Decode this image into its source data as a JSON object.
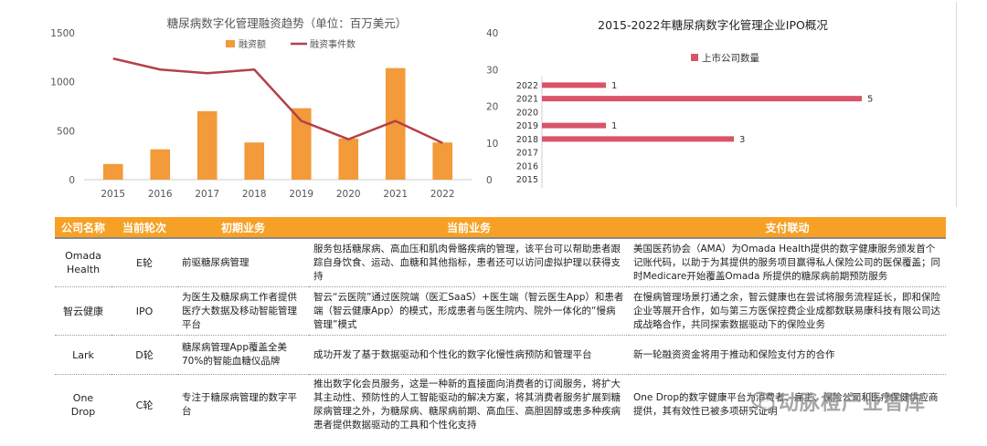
{
  "left_chart": {
    "title": "糖尿病数字化管理融资趋势（单位：百万美元）",
    "legend_bar": "融资额",
    "legend_line": "融资事件数"
  },
  "right_chart": {
    "title": "2015-2022年糖尿病数字化管理企业IPO概况",
    "legend": "上市公司数量"
  },
  "chart_data": [
    {
      "type": "bar",
      "title": "糖尿病数字化管理融资趋势（单位：百万美元）",
      "categories": [
        "2015",
        "2016",
        "2017",
        "2018",
        "2019",
        "2020",
        "2021",
        "2022"
      ],
      "series": [
        {
          "name": "融资额",
          "type": "bar",
          "axis": "left",
          "values": [
            160,
            310,
            700,
            380,
            730,
            420,
            1140,
            380
          ]
        },
        {
          "name": "融资事件数",
          "type": "line",
          "axis": "right",
          "values": [
            33,
            30,
            29,
            30,
            16,
            11,
            16,
            10
          ]
        }
      ],
      "y_left": {
        "ticks": [
          0,
          500,
          1000,
          1500
        ],
        "range": [
          0,
          1500
        ]
      },
      "y_right": {
        "ticks": [
          0,
          10,
          20,
          30,
          40
        ],
        "range": [
          0,
          40
        ]
      },
      "colors": {
        "bar": "#F39A3A",
        "line": "#B5404A"
      },
      "legend_position": "top"
    },
    {
      "type": "bar",
      "orientation": "horizontal",
      "title": "2015-2022年糖尿病数字化管理企业IPO概况",
      "categories": [
        "2022",
        "2021",
        "2020",
        "2019",
        "2018",
        "2017",
        "2016",
        "2015"
      ],
      "series": [
        {
          "name": "上市公司数量",
          "values": [
            1,
            5,
            0,
            1,
            3,
            0,
            0,
            0
          ]
        }
      ],
      "data_labels": [
        "1",
        "5",
        "",
        "1",
        "3",
        "",
        "",
        ""
      ],
      "xlim": [
        0,
        5
      ],
      "color": "#D9546A",
      "legend_position": "top-left"
    }
  ],
  "table": {
    "headers": [
      "公司名称",
      "当前轮次",
      "初期业务",
      "当前业务",
      "支付联动"
    ],
    "rows": [
      {
        "name": "Omada Health",
        "round": "E轮",
        "initial": "前驱糖尿病管理",
        "current": "服务包括糖尿病、高血压和肌肉骨骼疾病的管理，该平台可以帮助患者跟踪自身饮食、运动、血糖和其他指标，患者还可以访问虚拟护理以获得支持",
        "payment": "美国医药协会（AMA）为Omada Health提供的数字健康服务颁发首个记账代码，以助于为其提供的服务项目赢得私人保险公司的医保覆盖；同时Medicare开始覆盖Omada 所提供的糖尿病前期预防服务"
      },
      {
        "name": "智云健康",
        "round": "IPO",
        "initial": "为医生及糖尿病工作者提供医疗大数据及移动智能管理平台",
        "current": "智云“云医院”通过医院端（医汇SaaS）+医生端（智云医生App）和患者端（智云健康App）的模式，形成患者与医生院内、院外一体化的“慢病管理”模式",
        "payment": "在慢病管理场景打通之余，智云健康也在尝试将服务流程延长，即和保险企业等展开合作，如与第三方医保控费企业成都数联易康科技有限公司达成战略合作，共同探索数据驱动下的保险业务"
      },
      {
        "name": "Lark",
        "round": "D轮",
        "initial": "糖尿病管理App覆盖全美70%的智能血糖仪品牌",
        "current": "成功开发了基于数据驱动和个性化的数字化慢性病预防和管理平台",
        "payment": "新一轮融资资金将用于推动和保险支付方的合作"
      },
      {
        "name": "One Drop",
        "round": "C轮",
        "initial": "专注于糖尿病管理的数字平台",
        "current": "推出数字化会员服务，这是一种新的直接面向消费者的订阅服务，将扩大其主动性、预防性的人工智能驱动的解决方案，将其消费者服务扩展到糖尿病管理之外，为糖尿病、糖尿病前期、高血压、高胆固醇或患多种疾病患者提供数据驱动的工具和个性化支持",
        "payment": "One Drop的数字健康平台为消费者、雇主、保险公司和医疗保健供应商提供，其有效性已被多项研究证明"
      }
    ]
  },
  "watermark": "动脉橙产业智库"
}
